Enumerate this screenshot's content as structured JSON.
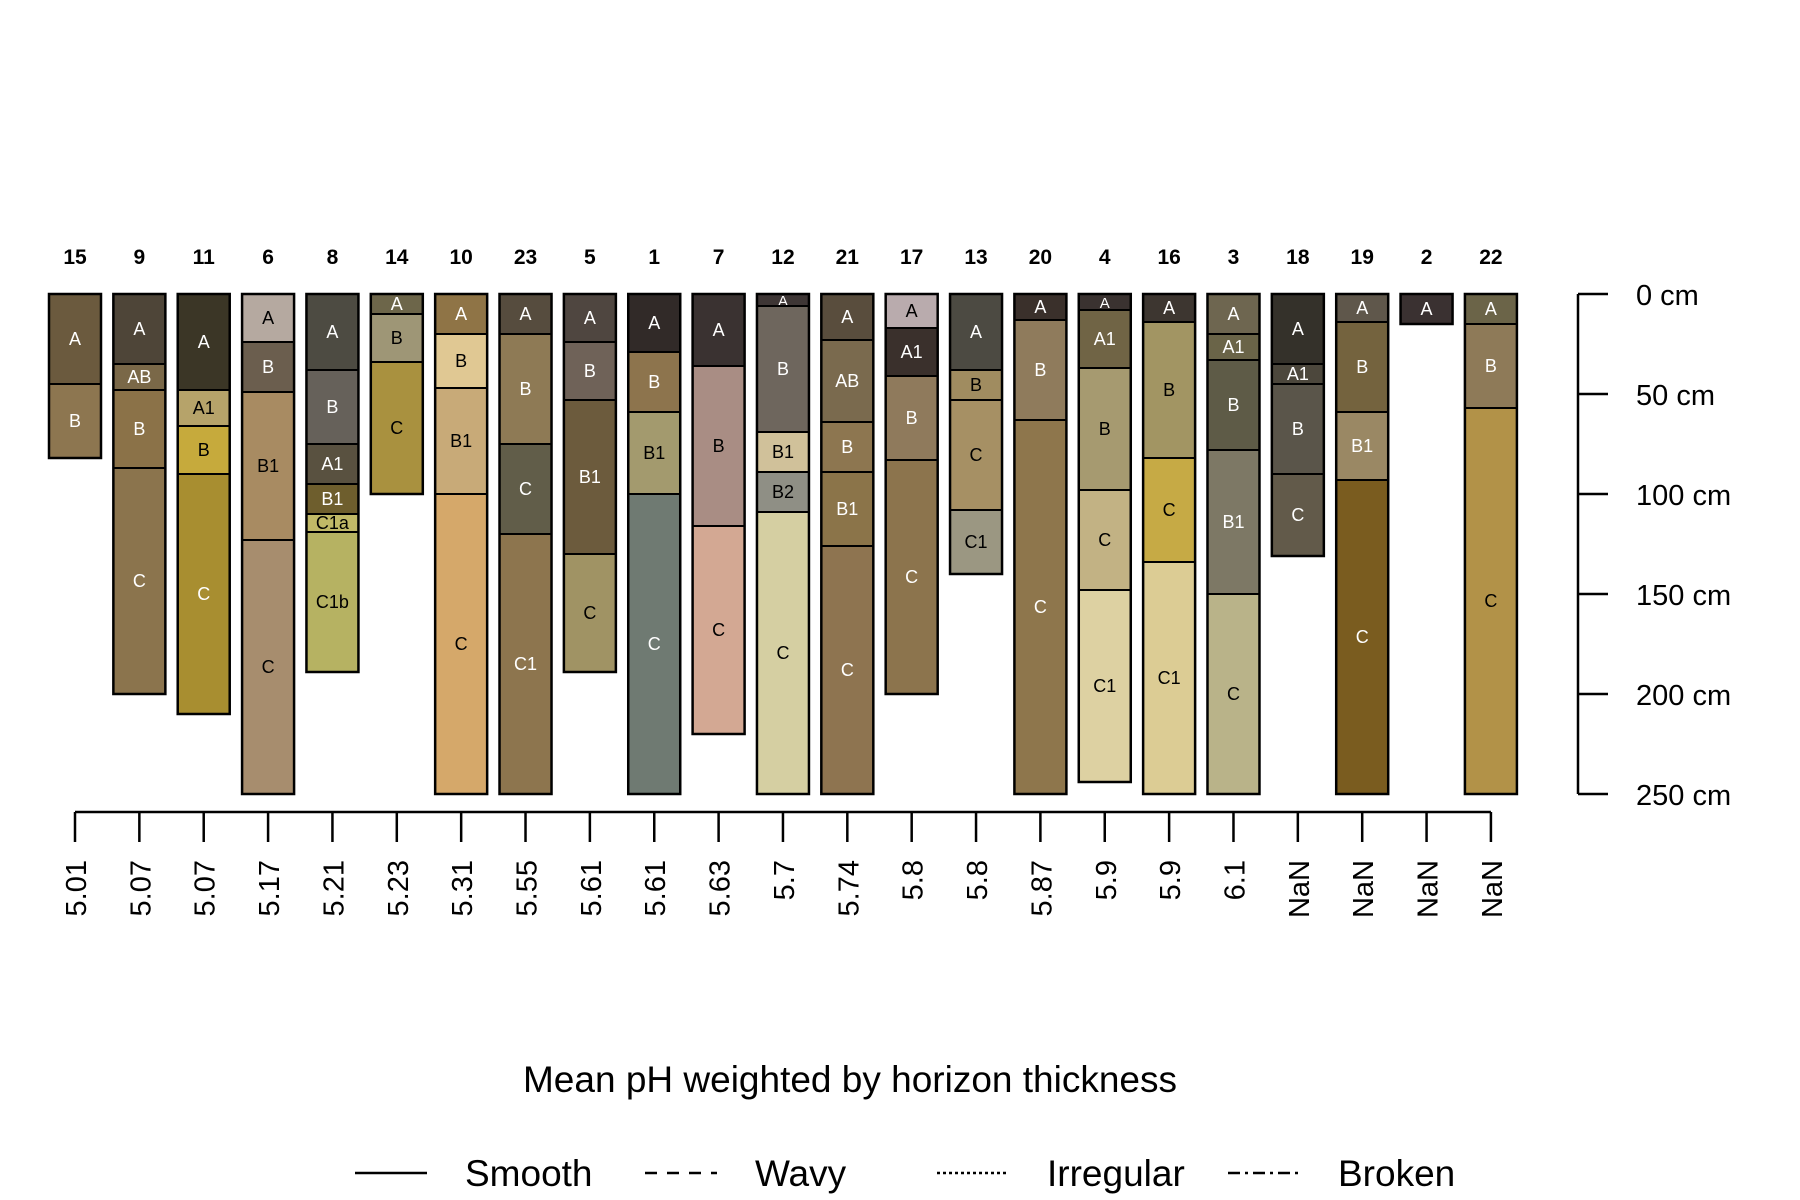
{
  "chart_data": {
    "type": "soil-profile-sketch",
    "xlabel": "Mean pH weighted by horizon thickness",
    "depth_unit": "cm",
    "depth_ticks": [
      0,
      50,
      100,
      150,
      200,
      250
    ],
    "depth_tick_labels": [
      "0 cm",
      "50 cm",
      "100 cm",
      "150 cm",
      "200 cm",
      "250 cm"
    ],
    "depth_range": [
      0,
      250
    ],
    "legend": {
      "placement": "bottom",
      "items": [
        {
          "label": "Smooth",
          "dash": "solid"
        },
        {
          "label": "Wavy",
          "dash": "wavy"
        },
        {
          "label": "Irregular",
          "dash": "irregular"
        },
        {
          "label": "Broken",
          "dash": "broken"
        }
      ]
    },
    "profiles": [
      {
        "id": "15",
        "ph": "5.01",
        "horizons": [
          {
            "name": "A",
            "top": 0,
            "bottom": 45,
            "color": "#6b5a3e"
          },
          {
            "name": "B",
            "top": 45,
            "bottom": 82,
            "color": "#8d7650"
          }
        ]
      },
      {
        "id": "9",
        "ph": "5.07",
        "horizons": [
          {
            "name": "A",
            "top": 0,
            "bottom": 35,
            "color": "#4e4538"
          },
          {
            "name": "AB",
            "top": 35,
            "bottom": 48,
            "color": "#7a6848"
          },
          {
            "name": "B",
            "top": 48,
            "bottom": 87,
            "color": "#8b7248"
          },
          {
            "name": "C",
            "top": 87,
            "bottom": 200,
            "color": "#8b744d"
          }
        ]
      },
      {
        "id": "11",
        "ph": "5.07",
        "horizons": [
          {
            "name": "A",
            "top": 0,
            "bottom": 48,
            "color": "#3b3626"
          },
          {
            "name": "A1",
            "top": 48,
            "bottom": 66,
            "color": "#b6a36a"
          },
          {
            "name": "B",
            "top": 66,
            "bottom": 90,
            "color": "#c6aa3c"
          },
          {
            "name": "C",
            "top": 90,
            "bottom": 210,
            "color": "#a88e30"
          }
        ]
      },
      {
        "id": "6",
        "ph": "5.17",
        "horizons": [
          {
            "name": "A",
            "top": 0,
            "bottom": 24,
            "color": "#b5a9a0"
          },
          {
            "name": "B",
            "top": 24,
            "bottom": 49,
            "color": "#6b5e4e"
          },
          {
            "name": "B1",
            "top": 49,
            "bottom": 123,
            "color": "#a88b62"
          },
          {
            "name": "C",
            "top": 123,
            "bottom": 250,
            "color": "#a78d6e"
          }
        ]
      },
      {
        "id": "8",
        "ph": "5.21",
        "horizons": [
          {
            "name": "A",
            "top": 0,
            "bottom": 38,
            "color": "#4d4b42"
          },
          {
            "name": "B",
            "top": 38,
            "bottom": 75,
            "color": "#66615a"
          },
          {
            "name": "A1",
            "top": 75,
            "bottom": 95,
            "color": "#595140"
          },
          {
            "name": "B1",
            "top": 95,
            "bottom": 110,
            "color": "#6e5e2d"
          },
          {
            "name": "C1a",
            "top": 110,
            "bottom": 119,
            "color": "#c1b967"
          },
          {
            "name": "C1b",
            "top": 119,
            "bottom": 189,
            "color": "#b6b262"
          }
        ]
      },
      {
        "id": "14",
        "ph": "5.23",
        "horizons": [
          {
            "name": "A",
            "top": 0,
            "bottom": 10,
            "color": "#6d664a"
          },
          {
            "name": "B",
            "top": 10,
            "bottom": 34,
            "color": "#9e9676"
          },
          {
            "name": "C",
            "top": 34,
            "bottom": 100,
            "color": "#a9913f"
          }
        ]
      },
      {
        "id": "10",
        "ph": "5.31",
        "horizons": [
          {
            "name": "A",
            "top": 0,
            "bottom": 20,
            "color": "#8f7446"
          },
          {
            "name": "B",
            "top": 20,
            "bottom": 47,
            "color": "#e0c893"
          },
          {
            "name": "B1",
            "top": 47,
            "bottom": 100,
            "color": "#c8aa78"
          },
          {
            "name": "C",
            "top": 100,
            "bottom": 250,
            "color": "#d5a86a"
          }
        ]
      },
      {
        "id": "23",
        "ph": "5.55",
        "horizons": [
          {
            "name": "A",
            "top": 0,
            "bottom": 20,
            "color": "#564c3e"
          },
          {
            "name": "B",
            "top": 20,
            "bottom": 75,
            "color": "#8e7a55"
          },
          {
            "name": "C",
            "top": 75,
            "bottom": 120,
            "color": "#615d49"
          },
          {
            "name": "C1",
            "top": 120,
            "bottom": 250,
            "color": "#8d754e"
          }
        ]
      },
      {
        "id": "5",
        "ph": "5.61",
        "horizons": [
          {
            "name": "A",
            "top": 0,
            "bottom": 24,
            "color": "#4f4640"
          },
          {
            "name": "B",
            "top": 24,
            "bottom": 53,
            "color": "#6f6258"
          },
          {
            "name": "B1",
            "top": 53,
            "bottom": 130,
            "color": "#6c5b3d"
          },
          {
            "name": "C",
            "top": 130,
            "bottom": 189,
            "color": "#a09364"
          }
        ]
      },
      {
        "id": "1",
        "ph": "5.61",
        "horizons": [
          {
            "name": "A",
            "top": 0,
            "bottom": 29,
            "color": "#312a28"
          },
          {
            "name": "B",
            "top": 29,
            "bottom": 59,
            "color": "#8d744d"
          },
          {
            "name": "B1",
            "top": 59,
            "bottom": 100,
            "color": "#a39a6e"
          },
          {
            "name": "C",
            "top": 100,
            "bottom": 250,
            "color": "#6f7a72"
          }
        ]
      },
      {
        "id": "7",
        "ph": "5.63",
        "horizons": [
          {
            "name": "A",
            "top": 0,
            "bottom": 36,
            "color": "#3a3231"
          },
          {
            "name": "B",
            "top": 36,
            "bottom": 116,
            "color": "#a98d84"
          },
          {
            "name": "C",
            "top": 116,
            "bottom": 220,
            "color": "#d3a893"
          }
        ]
      },
      {
        "id": "12",
        "ph": "5.7",
        "horizons": [
          {
            "name": "A",
            "top": 0,
            "bottom": 6,
            "color": "#3e3635"
          },
          {
            "name": "B",
            "top": 6,
            "bottom": 69,
            "color": "#6e665d"
          },
          {
            "name": "B1",
            "top": 69,
            "bottom": 89,
            "color": "#d0c19a"
          },
          {
            "name": "B2",
            "top": 89,
            "bottom": 109,
            "color": "#8f8f85"
          },
          {
            "name": "C",
            "top": 109,
            "bottom": 250,
            "color": "#d5cfa2"
          }
        ]
      },
      {
        "id": "21",
        "ph": "5.74",
        "horizons": [
          {
            "name": "A",
            "top": 0,
            "bottom": 23,
            "color": "#594d3d"
          },
          {
            "name": "AB",
            "top": 23,
            "bottom": 64,
            "color": "#7a6a4e"
          },
          {
            "name": "B",
            "top": 64,
            "bottom": 89,
            "color": "#8d7650"
          },
          {
            "name": "B1",
            "top": 89,
            "bottom": 126,
            "color": "#8b7449"
          },
          {
            "name": "C",
            "top": 126,
            "bottom": 250,
            "color": "#8e7450"
          }
        ]
      },
      {
        "id": "17",
        "ph": "5.8",
        "horizons": [
          {
            "name": "A",
            "top": 0,
            "bottom": 17,
            "color": "#b9abad"
          },
          {
            "name": "A1",
            "top": 17,
            "bottom": 41,
            "color": "#3a302c"
          },
          {
            "name": "B",
            "top": 41,
            "bottom": 83,
            "color": "#8f7a5c"
          },
          {
            "name": "C",
            "top": 83,
            "bottom": 200,
            "color": "#8c744d"
          }
        ]
      },
      {
        "id": "13",
        "ph": "5.8",
        "horizons": [
          {
            "name": "A",
            "top": 0,
            "bottom": 38,
            "color": "#4c4a42"
          },
          {
            "name": "B",
            "top": 38,
            "bottom": 53,
            "color": "#a08c60"
          },
          {
            "name": "C",
            "top": 53,
            "bottom": 108,
            "color": "#a69064"
          },
          {
            "name": "C1",
            "top": 108,
            "bottom": 140,
            "color": "#9b9782"
          }
        ]
      },
      {
        "id": "20",
        "ph": "5.87",
        "horizons": [
          {
            "name": "A",
            "top": 0,
            "bottom": 13,
            "color": "#3a302b"
          },
          {
            "name": "B",
            "top": 13,
            "bottom": 63,
            "color": "#8f7b5c"
          },
          {
            "name": "C",
            "top": 63,
            "bottom": 250,
            "color": "#8e764c"
          }
        ]
      },
      {
        "id": "4",
        "ph": "5.9",
        "horizons": [
          {
            "name": "A",
            "top": 0,
            "bottom": 8,
            "color": "#3a3230"
          },
          {
            "name": "A1",
            "top": 8,
            "bottom": 37,
            "color": "#706445"
          },
          {
            "name": "B",
            "top": 37,
            "bottom": 98,
            "color": "#a69a70"
          },
          {
            "name": "C",
            "top": 98,
            "bottom": 148,
            "color": "#c2b284"
          },
          {
            "name": "C1",
            "top": 148,
            "bottom": 244,
            "color": "#ddd1a2"
          }
        ]
      },
      {
        "id": "16",
        "ph": "5.9",
        "horizons": [
          {
            "name": "A",
            "top": 0,
            "bottom": 14,
            "color": "#3d3630"
          },
          {
            "name": "B",
            "top": 14,
            "bottom": 82,
            "color": "#a29563"
          },
          {
            "name": "C",
            "top": 82,
            "bottom": 134,
            "color": "#c6aa45"
          },
          {
            "name": "C1",
            "top": 134,
            "bottom": 250,
            "color": "#dccc94"
          }
        ]
      },
      {
        "id": "3",
        "ph": "6.1",
        "horizons": [
          {
            "name": "A",
            "top": 0,
            "bottom": 20,
            "color": "#6e6650"
          },
          {
            "name": "A1",
            "top": 20,
            "bottom": 33,
            "color": "#6a6448"
          },
          {
            "name": "B",
            "top": 33,
            "bottom": 78,
            "color": "#5e5b47"
          },
          {
            "name": "B1",
            "top": 78,
            "bottom": 150,
            "color": "#7d7865"
          },
          {
            "name": "C",
            "top": 150,
            "bottom": 250,
            "color": "#b9b389"
          }
        ]
      },
      {
        "id": "18",
        "ph": "NaN",
        "horizons": [
          {
            "name": "A",
            "top": 0,
            "bottom": 35,
            "color": "#34312a"
          },
          {
            "name": "A1",
            "top": 35,
            "bottom": 45,
            "color": "#4c473c"
          },
          {
            "name": "B",
            "top": 45,
            "bottom": 90,
            "color": "#5a554a"
          },
          {
            "name": "C",
            "top": 90,
            "bottom": 131,
            "color": "#625a4a"
          }
        ]
      },
      {
        "id": "19",
        "ph": "NaN",
        "horizons": [
          {
            "name": "A",
            "top": 0,
            "bottom": 14,
            "color": "#5f574b"
          },
          {
            "name": "B",
            "top": 14,
            "bottom": 59,
            "color": "#74633e"
          },
          {
            "name": "B1",
            "top": 59,
            "bottom": 93,
            "color": "#9a8864"
          },
          {
            "name": "C",
            "top": 93,
            "bottom": 250,
            "color": "#7a5c1f"
          }
        ]
      },
      {
        "id": "2",
        "ph": "NaN",
        "horizons": [
          {
            "name": "A",
            "top": 0,
            "bottom": 15,
            "color": "#3a3131"
          }
        ]
      },
      {
        "id": "22",
        "ph": "NaN",
        "horizons": [
          {
            "name": "A",
            "top": 0,
            "bottom": 15,
            "color": "#6b6448"
          },
          {
            "name": "B",
            "top": 15,
            "bottom": 57,
            "color": "#8e7a58"
          },
          {
            "name": "C",
            "top": 57,
            "bottom": 250,
            "color": "#b29248"
          }
        ]
      }
    ]
  }
}
